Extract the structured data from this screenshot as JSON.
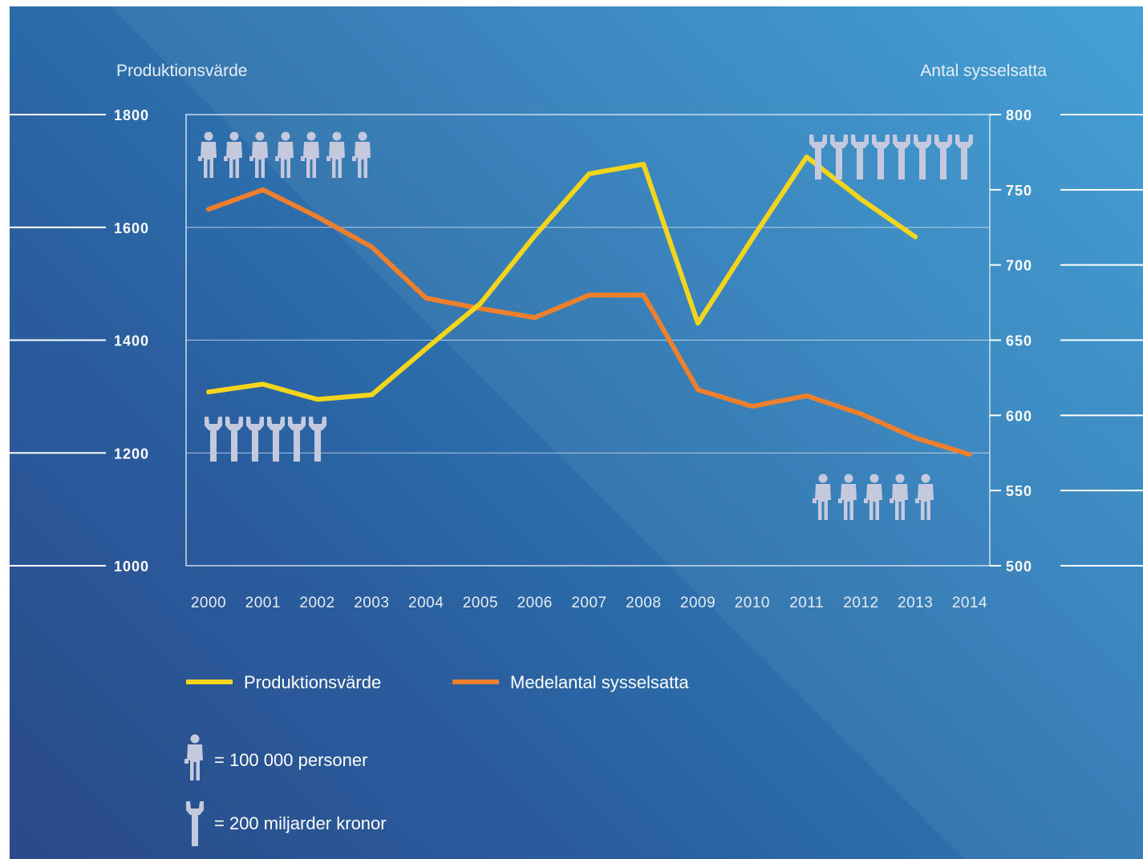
{
  "chart_data": {
    "type": "line",
    "y_left_label": "Produktionsvärde",
    "y_right_label": "Antal sysselsatta",
    "y_left_ticks": [
      "1800",
      "1600",
      "1400",
      "1200",
      "1000"
    ],
    "y_right_ticks": [
      "800",
      "750",
      "700",
      "650",
      "600",
      "550",
      "500"
    ],
    "y_left_range": [
      1000,
      1800
    ],
    "y_right_range": [
      500,
      800
    ],
    "x_ticks": [
      "2000",
      "2001",
      "2002",
      "2003",
      "2004",
      "2005",
      "2006",
      "2007",
      "2008",
      "2009",
      "2010",
      "2011",
      "2012",
      "2013",
      "2014"
    ],
    "grid": "horizontal",
    "legend_position": "bottom-left",
    "series": [
      {
        "name": "Produktionsvärde",
        "axis": "left",
        "color": "#f5d51b",
        "x": [
          2000,
          2001,
          2002,
          2003,
          2004,
          2005,
          2006,
          2007,
          2008,
          2009,
          2010,
          2011,
          2012,
          2013
        ],
        "values": [
          1308,
          1322,
          1295,
          1303,
          1385,
          1465,
          1585,
          1695,
          1712,
          1430,
          1580,
          1725,
          1650,
          1583
        ]
      },
      {
        "name": "Medelantal sysselsatta",
        "axis": "right",
        "color": "#ee7f2d",
        "x": [
          2000,
          2001,
          2002,
          2003,
          2004,
          2005,
          2006,
          2007,
          2008,
          2009,
          2010,
          2011,
          2012,
          2013,
          2014
        ],
        "values": [
          737,
          750,
          732,
          712,
          678,
          671,
          665,
          680,
          680,
          617,
          606,
          613,
          601,
          585,
          574
        ]
      }
    ]
  },
  "pictograms": {
    "people_2000": 7.3,
    "people_2013": 5.7,
    "wrenches_2000": 6.3,
    "wrenches_2013": 8.0
  },
  "key": {
    "person_label": "= 100 000 personer",
    "wrench_label": "= 200 miljarder kronor",
    "person_icon": "person-icon",
    "wrench_icon": "wrench-icon"
  },
  "colors": {
    "pictogram": "#c5c9dd",
    "axis_lines": "#ffffff"
  }
}
